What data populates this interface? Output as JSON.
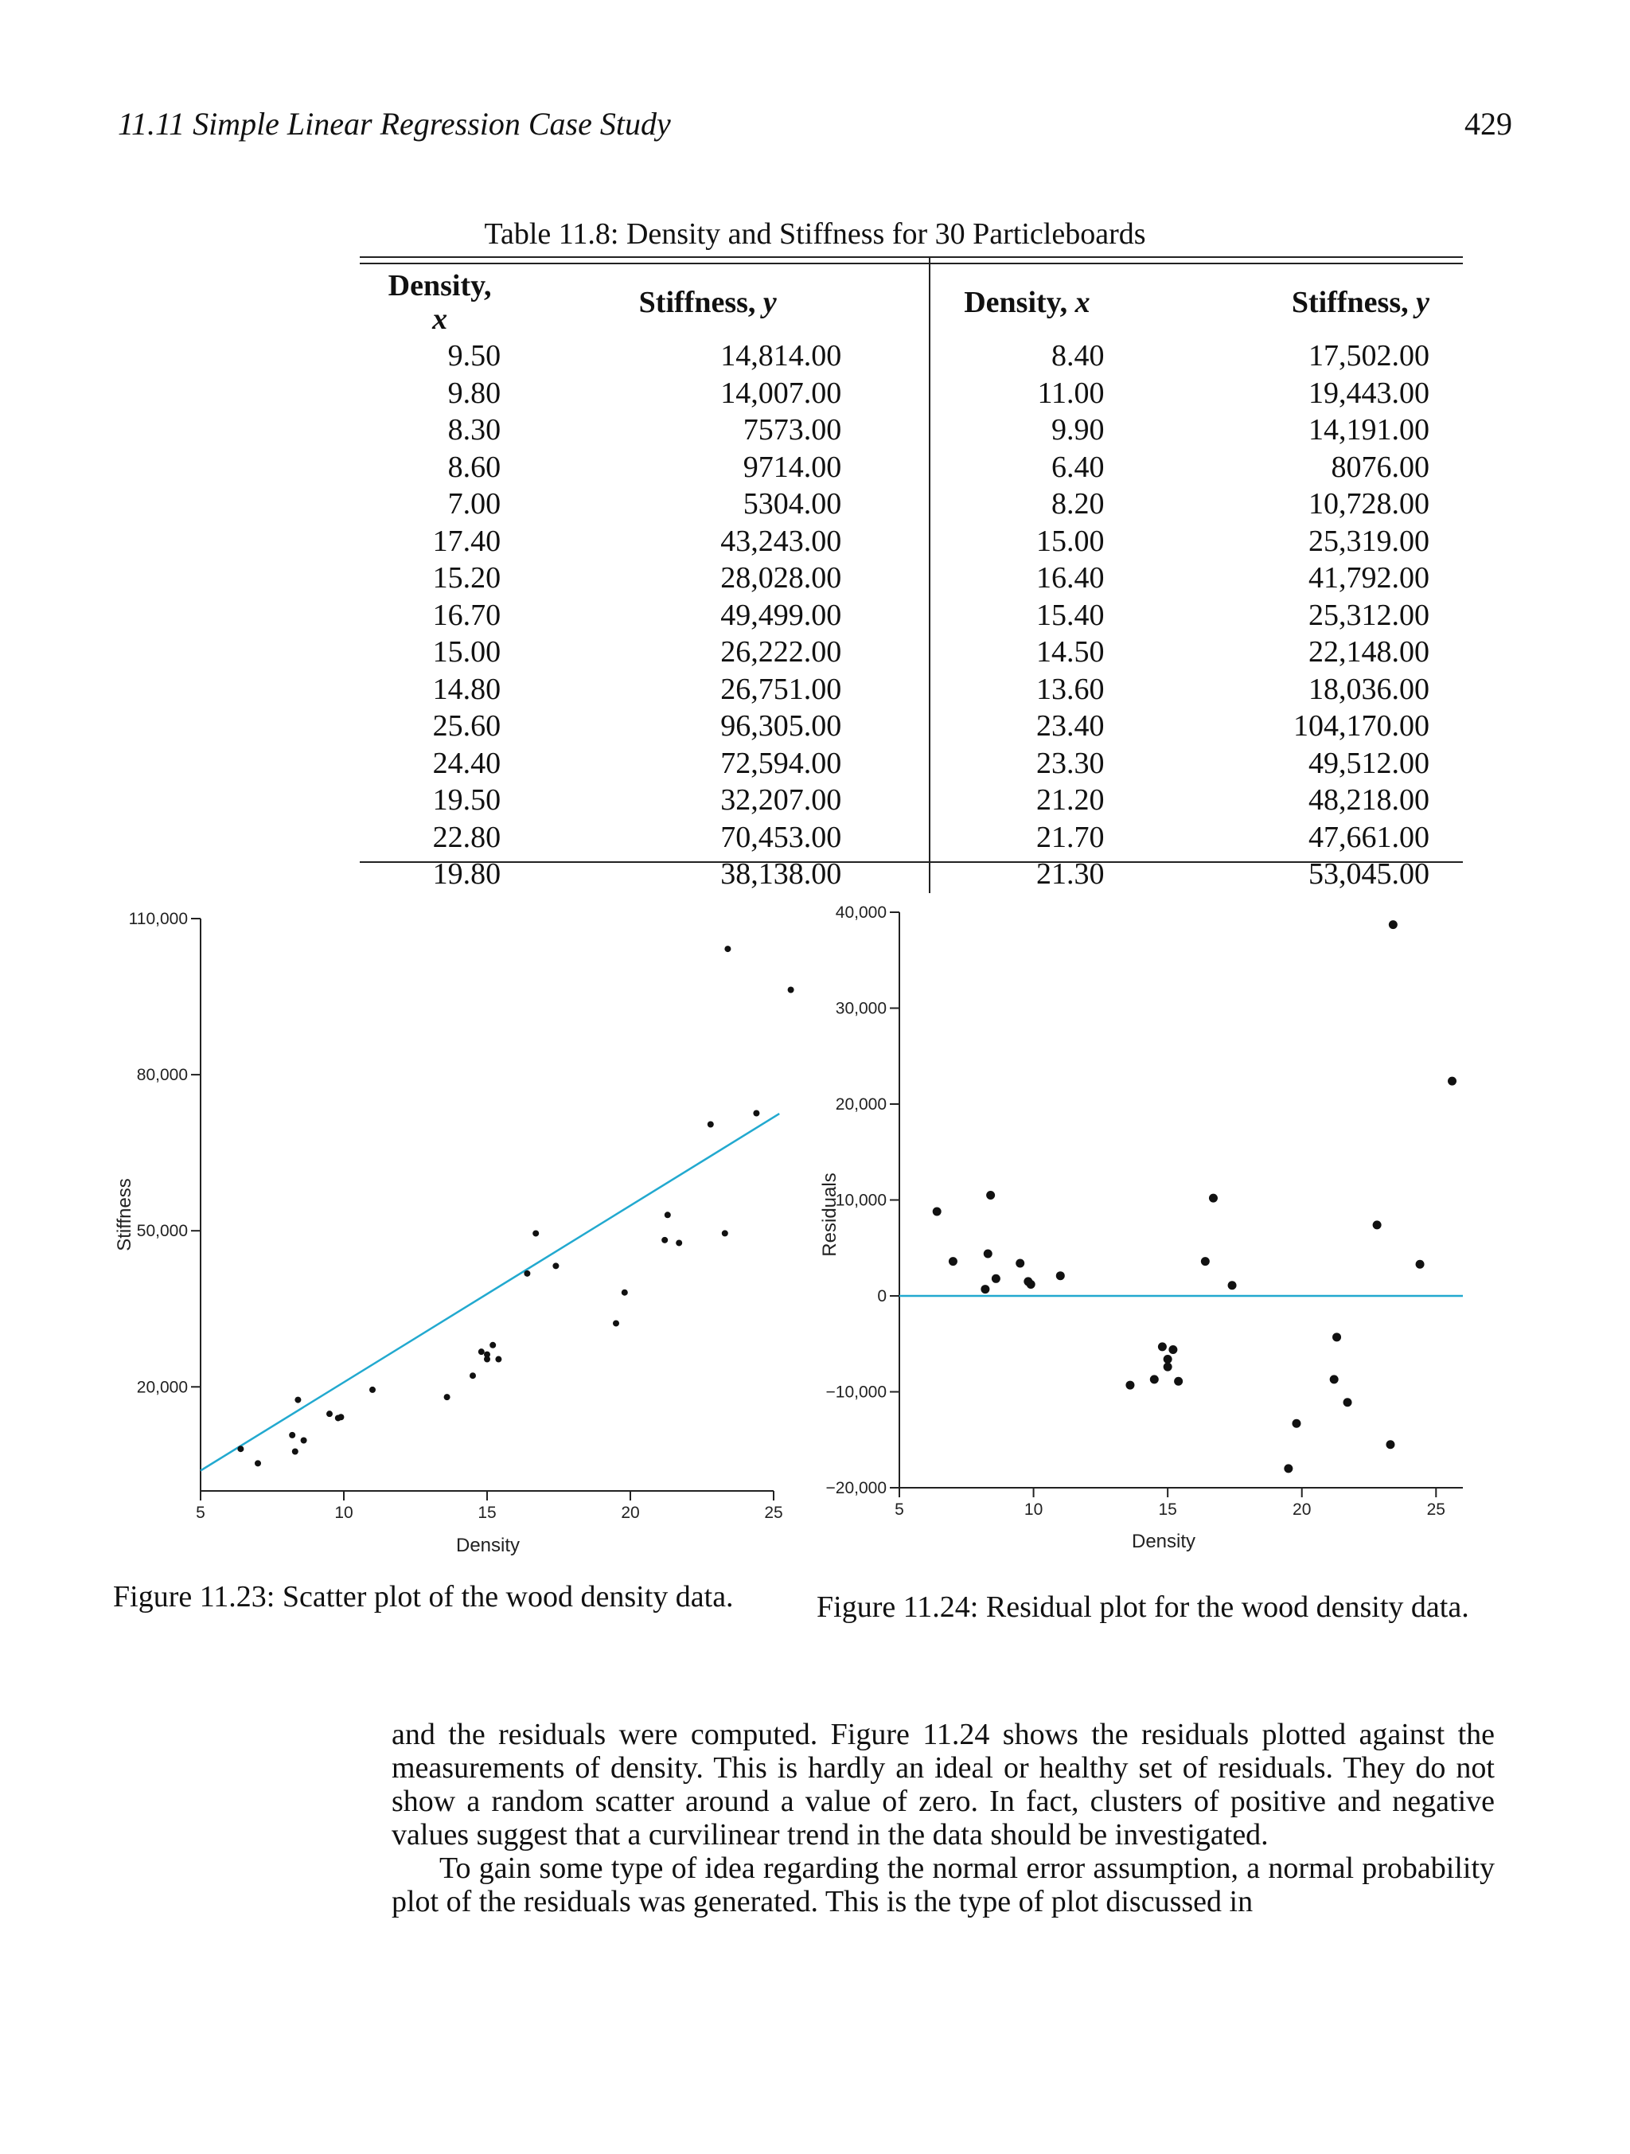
{
  "header": {
    "section": "11.11  Simple Linear Regression Case Study",
    "page_number": "429"
  },
  "table": {
    "caption": "Table 11.8: Density and Stiffness for 30 Particleboards",
    "headers": [
      "Density, x",
      "Stiffness, y",
      "Density, x",
      "Stiffness, y"
    ],
    "rows": [
      [
        "9.50",
        "14,814.00",
        "8.40",
        "17,502.00"
      ],
      [
        "9.80",
        "14,007.00",
        "11.00",
        "19,443.00"
      ],
      [
        "8.30",
        "7573.00",
        "9.90",
        "14,191.00"
      ],
      [
        "8.60",
        "9714.00",
        "6.40",
        "8076.00"
      ],
      [
        "7.00",
        "5304.00",
        "8.20",
        "10,728.00"
      ],
      [
        "17.40",
        "43,243.00",
        "15.00",
        "25,319.00"
      ],
      [
        "15.20",
        "28,028.00",
        "16.40",
        "41,792.00"
      ],
      [
        "16.70",
        "49,499.00",
        "15.40",
        "25,312.00"
      ],
      [
        "15.00",
        "26,222.00",
        "14.50",
        "22,148.00"
      ],
      [
        "14.80",
        "26,751.00",
        "13.60",
        "18,036.00"
      ],
      [
        "25.60",
        "96,305.00",
        "23.40",
        "104,170.00"
      ],
      [
        "24.40",
        "72,594.00",
        "23.30",
        "49,512.00"
      ],
      [
        "19.50",
        "32,207.00",
        "21.20",
        "48,218.00"
      ],
      [
        "22.80",
        "70,453.00",
        "21.70",
        "47,661.00"
      ],
      [
        "19.80",
        "38,138.00",
        "21.30",
        "53,045.00"
      ]
    ]
  },
  "chart_data": [
    {
      "type": "scatter",
      "title": "",
      "xlabel": "Density",
      "ylabel": "Stiffness",
      "xlim": [
        5,
        25
      ],
      "ylim": [
        0,
        110000
      ],
      "xticks": [
        5,
        10,
        15,
        20,
        25
      ],
      "xtick_labels": [
        "5",
        "10",
        "15",
        "20",
        "25"
      ],
      "yticks": [
        20000,
        50000,
        80000,
        110000
      ],
      "ytick_labels": [
        "20,000",
        "50,000",
        "80,000",
        "110,000"
      ],
      "points": [
        [
          9.5,
          14814
        ],
        [
          9.8,
          14007
        ],
        [
          8.3,
          7573
        ],
        [
          8.6,
          9714
        ],
        [
          7.0,
          5304
        ],
        [
          17.4,
          43243
        ],
        [
          15.2,
          28028
        ],
        [
          16.7,
          49499
        ],
        [
          15.0,
          26222
        ],
        [
          14.8,
          26751
        ],
        [
          25.6,
          96305
        ],
        [
          24.4,
          72594
        ],
        [
          19.5,
          32207
        ],
        [
          22.8,
          70453
        ],
        [
          19.8,
          38138
        ],
        [
          8.4,
          17502
        ],
        [
          11.0,
          19443
        ],
        [
          9.9,
          14191
        ],
        [
          6.4,
          8076
        ],
        [
          8.2,
          10728
        ],
        [
          15.0,
          25319
        ],
        [
          16.4,
          41792
        ],
        [
          15.4,
          25312
        ],
        [
          14.5,
          22148
        ],
        [
          13.6,
          18036
        ],
        [
          23.4,
          104170
        ],
        [
          23.3,
          49512
        ],
        [
          21.2,
          48218
        ],
        [
          21.7,
          47661
        ],
        [
          21.3,
          53045
        ]
      ],
      "fit_line": {
        "x": [
          5,
          25.2
        ],
        "y": [
          3900,
          72500
        ]
      },
      "color_fit": "#22a9cf"
    },
    {
      "type": "scatter",
      "title": "",
      "xlabel": "Density",
      "ylabel": "Residuals",
      "xlim": [
        5,
        26
      ],
      "ylim": [
        -20000,
        40000
      ],
      "xticks": [
        5,
        10,
        15,
        20,
        25
      ],
      "xtick_labels": [
        "5",
        "10",
        "15",
        "20",
        "25"
      ],
      "yticks": [
        -20000,
        -10000,
        0,
        10000,
        20000,
        30000,
        40000
      ],
      "ytick_labels": [
        "−20,000",
        "−10,000",
        "0",
        "10,000",
        "20,000",
        "30,000",
        "40,000"
      ],
      "points": [
        [
          6.4,
          8800
        ],
        [
          7.0,
          3600
        ],
        [
          8.2,
          700
        ],
        [
          8.3,
          4400
        ],
        [
          8.4,
          10500
        ],
        [
          8.6,
          1800
        ],
        [
          9.5,
          3400
        ],
        [
          9.8,
          1500
        ],
        [
          9.9,
          1200
        ],
        [
          11.0,
          2100
        ],
        [
          13.6,
          -9300
        ],
        [
          14.5,
          -8700
        ],
        [
          14.8,
          -5300
        ],
        [
          15.0,
          -6600
        ],
        [
          15.0,
          -7400
        ],
        [
          15.2,
          -5600
        ],
        [
          15.4,
          -8900
        ],
        [
          16.4,
          3600
        ],
        [
          16.7,
          10200
        ],
        [
          17.4,
          1100
        ],
        [
          19.5,
          -18000
        ],
        [
          19.8,
          -13300
        ],
        [
          21.2,
          -8700
        ],
        [
          21.3,
          -4300
        ],
        [
          21.7,
          -11100
        ],
        [
          22.8,
          7400
        ],
        [
          23.3,
          -15500
        ],
        [
          23.4,
          38700
        ],
        [
          24.4,
          3300
        ],
        [
          25.6,
          22400
        ]
      ],
      "zero_line": 0,
      "color_zero": "#22a9cf"
    }
  ],
  "figures": {
    "fig1_caption": "Figure 11.23: Scatter plot of the wood density data.",
    "fig2_caption": "Figure 11.24: Residual plot for the wood density data."
  },
  "body": {
    "para1": "and the residuals were computed. Figure 11.24 shows the residuals plotted against the measurements of density. This is hardly an ideal or healthy set of residuals. They do not show a random scatter around a value of zero. In fact, clusters of positive and negative values suggest that a curvilinear trend in the data should be investigated.",
    "para2": "To gain some type of idea regarding the normal error assumption, a normal probability plot of the residuals was generated. This is the type of plot discussed in"
  }
}
